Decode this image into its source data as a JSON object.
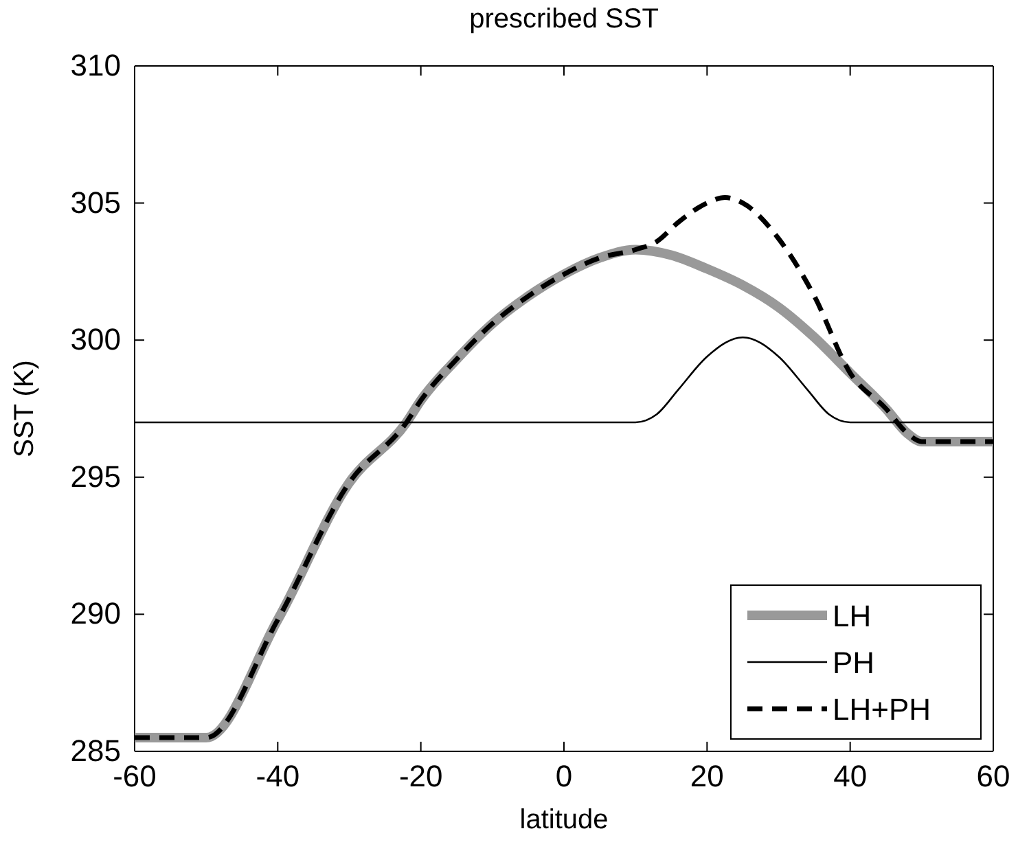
{
  "chart_data": {
    "type": "line",
    "title": "prescribed SST",
    "xlabel": "latitude",
    "ylabel": "SST (K)",
    "xlim": [
      -60,
      60
    ],
    "xticks": [
      -60,
      -40,
      -20,
      0,
      20,
      40,
      60
    ],
    "ylim": [
      285,
      310
    ],
    "yticks": [
      285,
      290,
      295,
      300,
      305,
      310
    ],
    "grid": false,
    "legend": "bottom right",
    "marker": "none",
    "series": [
      {
        "name": "LH",
        "color": "#999999",
        "line_style": "solid",
        "x": [
          -60,
          -50,
          -40,
          -30,
          -22,
          -20,
          -15,
          -10,
          -5,
          0,
          5,
          10,
          15,
          20,
          25,
          30,
          35,
          40,
          45,
          48,
          50,
          60
        ],
        "values": [
          285.5,
          285.5,
          289.8,
          294.8,
          297,
          297.8,
          299.3,
          300.6,
          301.6,
          302.4,
          303,
          303.3,
          303.1,
          302.6,
          302,
          301.2,
          300.1,
          298.8,
          297.5,
          296.6,
          296.3,
          296.3
        ]
      },
      {
        "name": "PH",
        "color": "#000000",
        "line_style": "solid",
        "x": [
          -60,
          10,
          13,
          16,
          20,
          25,
          30,
          34,
          37,
          40,
          60
        ],
        "values": [
          297,
          297,
          297.3,
          298.2,
          299.4,
          300.1,
          299.4,
          298.2,
          297.3,
          297,
          297
        ]
      },
      {
        "name": "LH+PH",
        "color": "#000000",
        "line_style": "dashed",
        "x": [
          -60,
          -50,
          -40,
          -30,
          -22,
          -20,
          -15,
          -10,
          -5,
          0,
          5,
          10,
          13,
          16,
          20,
          22.5,
          25,
          30,
          35,
          40,
          45,
          48,
          50,
          60
        ],
        "values": [
          285.5,
          285.5,
          289.8,
          294.8,
          297,
          297.8,
          299.3,
          300.6,
          301.6,
          302.4,
          303,
          303.3,
          303.6,
          304.3,
          305,
          305.2,
          305,
          303.7,
          301.6,
          298.8,
          297.5,
          296.6,
          296.3,
          296.3
        ]
      }
    ]
  }
}
